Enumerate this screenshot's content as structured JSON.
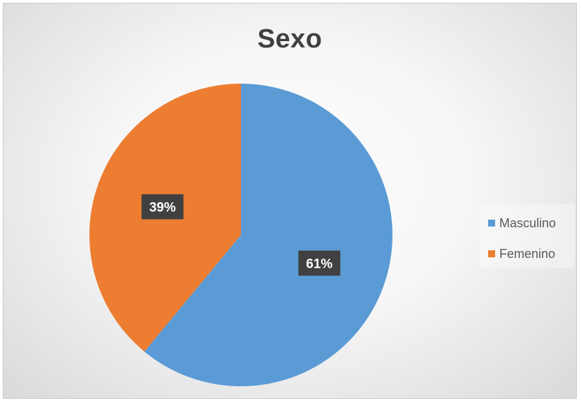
{
  "chart_data": {
    "type": "pie",
    "title": "Sexo",
    "categories": [
      "Masculino",
      "Femenino"
    ],
    "values": [
      61,
      39
    ],
    "data_labels": [
      "61%",
      "39%"
    ],
    "colors": [
      "#5b9bd5",
      "#ed7d31"
    ],
    "legend_position": "right"
  }
}
